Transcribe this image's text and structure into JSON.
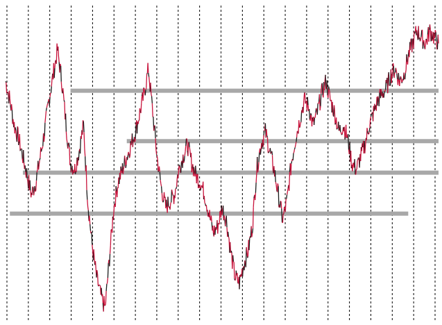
{
  "chart_data": {
    "type": "line",
    "title": "",
    "xlabel": "",
    "ylabel": "",
    "grid": {
      "vertical": true,
      "horizontal": false,
      "style": "dashed"
    },
    "legend": "none",
    "ylim": [
      0,
      100
    ],
    "xlim": [
      0,
      100
    ],
    "colors": {
      "price_up": "#c8143c",
      "price_down": "#1a1a1a",
      "level": "#a8a8a8",
      "grid": "#000000",
      "background": "#ffffff"
    },
    "series": [
      {
        "x": [
          0,
          1,
          2,
          3,
          4,
          5,
          6,
          7,
          8,
          9,
          10,
          11,
          12,
          13,
          14,
          15,
          16,
          17,
          18,
          19,
          20,
          21,
          22,
          23,
          24,
          25,
          26,
          27,
          28,
          29,
          30,
          31,
          32,
          33,
          34,
          35,
          36,
          37,
          38,
          39,
          40,
          41,
          42,
          43,
          44,
          45,
          46,
          47,
          48,
          49,
          50,
          51,
          52,
          53,
          54,
          55,
          56,
          57,
          58,
          59,
          60,
          61,
          62,
          63,
          64,
          65,
          66,
          67,
          68,
          69,
          70,
          71,
          72,
          73,
          74,
          75,
          76,
          77,
          78,
          79,
          80,
          81,
          82,
          83,
          84,
          85,
          86,
          87,
          88,
          89,
          90,
          91,
          92,
          93,
          94,
          95,
          96,
          97,
          98,
          99,
          100
        ],
        "y": [
          76,
          70,
          62,
          58,
          52,
          46,
          40,
          44,
          52,
          60,
          70,
          78,
          86,
          76,
          62,
          50,
          48,
          54,
          62,
          38,
          24,
          14,
          8,
          4,
          20,
          36,
          44,
          48,
          52,
          56,
          60,
          66,
          72,
          80,
          66,
          52,
          42,
          36,
          38,
          40,
          48,
          52,
          56,
          50,
          46,
          44,
          40,
          34,
          28,
          30,
          36,
          32,
          22,
          14,
          12,
          18,
          22,
          30,
          48,
          56,
          60,
          54,
          48,
          40,
          32,
          38,
          50,
          58,
          64,
          70,
          68,
          62,
          66,
          72,
          76,
          70,
          66,
          60,
          62,
          58,
          50,
          48,
          52,
          56,
          62,
          66,
          70,
          72,
          74,
          78,
          80,
          76,
          78,
          84,
          88,
          92,
          90,
          88,
          92,
          90,
          88
        ]
      }
    ],
    "levels": [
      {
        "y": 73,
        "x_start": 15,
        "x_end": 100
      },
      {
        "y": 57,
        "x_start": 28,
        "x_end": 100
      },
      {
        "y": 47,
        "x_start": 4,
        "x_end": 100
      },
      {
        "y": 34,
        "x_start": 1,
        "x_end": 93
      }
    ],
    "vertical_grid_count": 21
  }
}
